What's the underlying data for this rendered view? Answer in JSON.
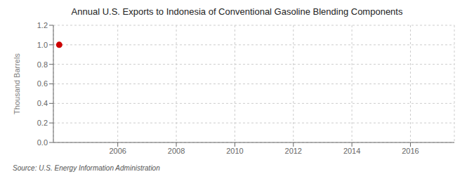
{
  "chart_data": {
    "type": "scatter",
    "title": "Annual U.S. Exports to Indonesia of Conventional Gasoline Blending Components",
    "ylabel": "Thousand Barrels",
    "annotation": "Source: U.S. Energy Information Administration",
    "x": [
      2004
    ],
    "values": [
      1.0
    ],
    "color": "#cc0000",
    "marker": "circle",
    "xlim": [
      2003.8,
      2017.5
    ],
    "ylim": [
      0.0,
      1.2
    ],
    "xticks": [
      2006,
      2008,
      2010,
      2012,
      2014,
      2016
    ],
    "yticks": [
      {
        "value": 0.0,
        "label": "0.0"
      },
      0.2,
      0.4,
      0.6,
      0.8,
      {
        "value": 1.0,
        "label": "1.0"
      },
      1.2
    ],
    "grid": true
  }
}
